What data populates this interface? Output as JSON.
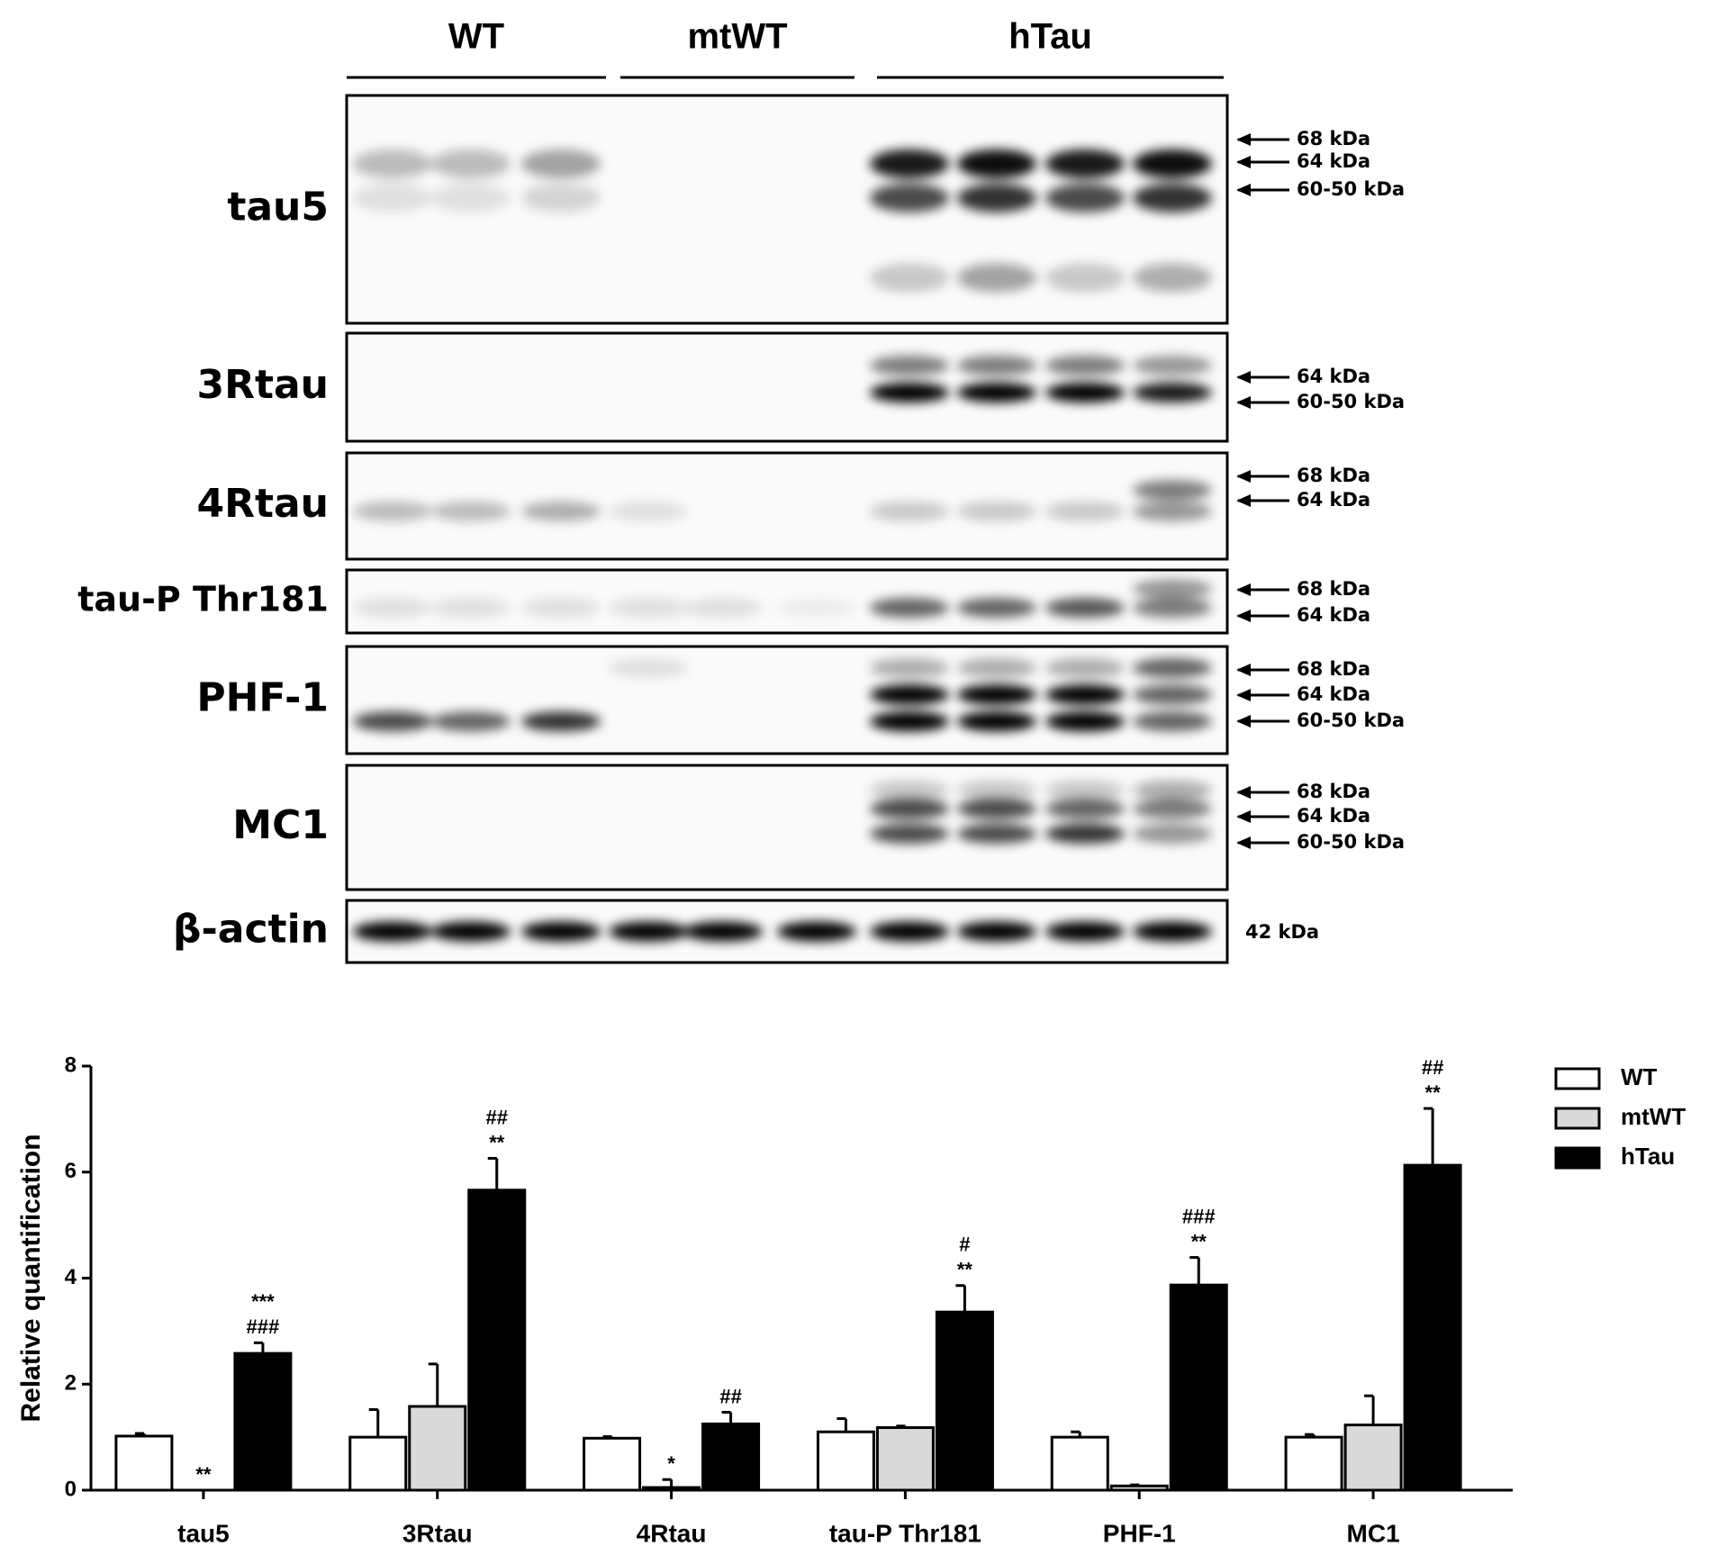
{
  "blot": {
    "groups": [
      "WT",
      "mtWT",
      "hTau"
    ],
    "rows": [
      {
        "label": "tau5",
        "markers": [
          "68 kDa",
          "64 kDa",
          "60-50 kDa"
        ]
      },
      {
        "label": "3Rtau",
        "markers": [
          "64 kDa",
          "60-50 kDa"
        ]
      },
      {
        "label": "4Rtau",
        "markers": [
          "68 kDa",
          "64 kDa"
        ]
      },
      {
        "label": "tau-P Thr181",
        "markers": [
          "68 kDa",
          "64 kDa"
        ]
      },
      {
        "label": "PHF-1",
        "markers": [
          "68 kDa",
          "64 kDa",
          "60-50 kDa"
        ]
      },
      {
        "label": "MC1",
        "markers": [
          "68 kDa",
          "64 kDa",
          "60-50 kDa"
        ]
      },
      {
        "label": "β-actin",
        "markers": [
          "42 kDa"
        ]
      }
    ]
  },
  "chart_data": {
    "type": "bar",
    "ylabel": "Relative quantification",
    "categories": [
      "tau5",
      "3Rtau",
      "4Rtau",
      "tau-P Thr181",
      "PHF-1",
      "MC1"
    ],
    "series": [
      {
        "name": "WT",
        "color": "#ffffff",
        "values": [
          1.02,
          1.0,
          0.98,
          1.1,
          1.0,
          1.0
        ],
        "errors": [
          0.05,
          0.52,
          0.03,
          0.25,
          0.1,
          0.05
        ]
      },
      {
        "name": "mtWT",
        "color": "#d9d9d9",
        "values": [
          0.0,
          1.58,
          0.05,
          1.18,
          0.08,
          1.23
        ],
        "errors": [
          0.0,
          0.8,
          0.15,
          0.03,
          0.02,
          0.55
        ],
        "annotations": [
          [
            "**"
          ],
          null,
          [
            "*"
          ],
          null,
          null,
          null
        ]
      },
      {
        "name": "hTau",
        "color": "#000000",
        "values": [
          2.58,
          5.66,
          1.25,
          3.36,
          3.87,
          6.13
        ],
        "errors": [
          0.2,
          0.6,
          0.22,
          0.5,
          0.52,
          1.07
        ],
        "annotations": [
          [
            "***",
            "###"
          ],
          [
            "##",
            "**"
          ],
          [
            "##"
          ],
          [
            "#",
            "**"
          ],
          [
            "###",
            "**"
          ],
          [
            "##",
            "**"
          ]
        ]
      }
    ],
    "ylim": [
      0,
      8
    ],
    "yticks": [
      0,
      2,
      4,
      6,
      8
    ]
  }
}
